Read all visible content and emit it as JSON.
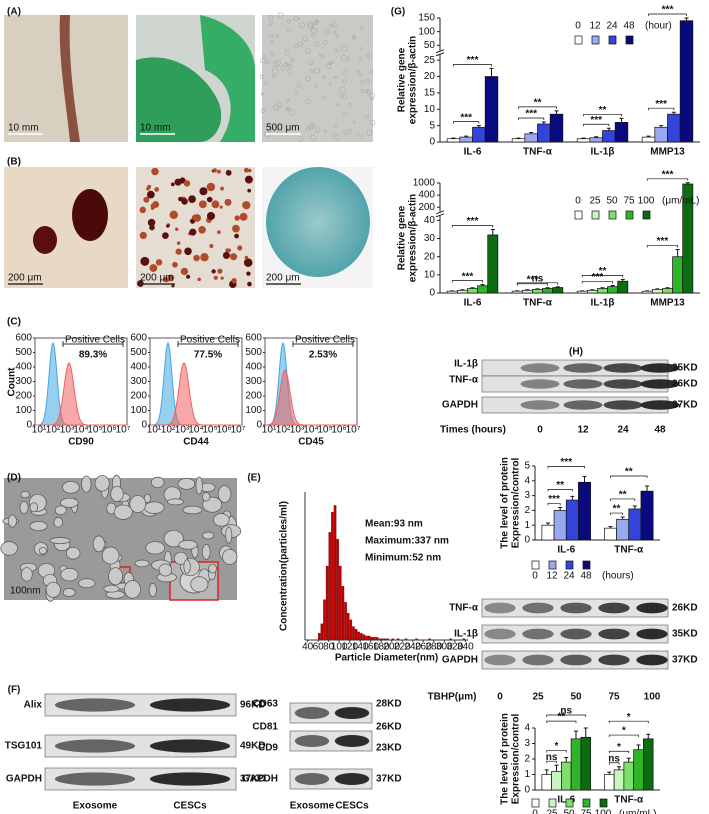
{
  "panel_labels": [
    "(A)",
    "(B)",
    "(C)",
    "(D)",
    "(E)",
    "(F)",
    "(G)",
    "(H)"
  ],
  "photos_a": {
    "scale_labels": [
      "10 mm",
      "10 mm",
      "500 μm"
    ]
  },
  "photos_b": {
    "scale_labels": [
      "200 μm",
      "200 μm",
      "200 μm"
    ]
  },
  "flow": {
    "y_label": "Count",
    "gate_label": "Positive Cells",
    "yticks": [
      0,
      100,
      200,
      300,
      400,
      500,
      600
    ],
    "xticks": [
      "10¹",
      "10²",
      "10³",
      "10⁴",
      "10⁵",
      "10⁶",
      "10⁷"
    ],
    "panels": [
      {
        "marker": "CD90",
        "percent": "89.3%"
      },
      {
        "marker": "CD44",
        "percent": "77.5%"
      },
      {
        "marker": "CD45",
        "percent": "2.53%"
      }
    ]
  },
  "tem": {
    "scale_label": "100nm"
  },
  "blot_f": {
    "left": {
      "proteins": [
        "Alix",
        "TSG101",
        "GAPDH"
      ],
      "sizes": [
        "96KD",
        "49KD",
        "37KD"
      ],
      "lanes": [
        "Exosome",
        "CESCs"
      ]
    },
    "right": {
      "proteins": [
        "CD63",
        "CD81",
        "CD9",
        "GAPDH"
      ],
      "sizes": [
        "28KD",
        "26KD",
        "23KD",
        "37KD"
      ],
      "lanes": [
        "Exosome",
        "CESCs"
      ]
    }
  },
  "blot_h1": {
    "proteins": [
      "IL-1β",
      "TNF-α",
      "GAPDH"
    ],
    "sizes": [
      "35KD",
      "26KD",
      "37KD"
    ],
    "lane_title": "Times (hours)",
    "lanes": [
      "0",
      "12",
      "24",
      "48"
    ]
  },
  "blot_h2": {
    "proteins": [
      "TNF-α",
      "IL-1β",
      "GAPDH"
    ],
    "sizes": [
      "26KD",
      "35KD",
      "37KD"
    ],
    "lane_title": "TBHP(μm)",
    "lanes": [
      "0",
      "25",
      "50",
      "75",
      "100"
    ]
  },
  "chart_data": [
    {
      "type": "histogram",
      "x_label": "Particle Diameter(nm)",
      "y_label": "Concentration(particles/ml)",
      "annotations": [
        "Mean:93 nm",
        "Maximum:337 nm",
        "Minimum:52 nm"
      ],
      "color": "#c00000",
      "bins": [
        60,
        65,
        70,
        75,
        80,
        85,
        90,
        95,
        100,
        105,
        110,
        115,
        120,
        125,
        130,
        135,
        140,
        145,
        150,
        155,
        160,
        165,
        170,
        175,
        180,
        185,
        190,
        195,
        200,
        205,
        210,
        215,
        220,
        225,
        230,
        235,
        240,
        245,
        250,
        255,
        260,
        265,
        270,
        275,
        280,
        285,
        290,
        295,
        300,
        305,
        310,
        315,
        320,
        325,
        330,
        335,
        340
      ],
      "counts": [
        5,
        12,
        30,
        55,
        80,
        95,
        100,
        75,
        55,
        40,
        28,
        20,
        15,
        10,
        8,
        6,
        5,
        4,
        3,
        3,
        2,
        2,
        2,
        1,
        1,
        1,
        1,
        0,
        1,
        0,
        1,
        0,
        0,
        1,
        0,
        0,
        0,
        1,
        0,
        0,
        0,
        0,
        1,
        0,
        0,
        0,
        0,
        0,
        0,
        0,
        1,
        0,
        0,
        0,
        0,
        1
      ],
      "xlim": [
        35,
        345
      ],
      "ylim": [
        0,
        110
      ],
      "xticks": [
        40,
        60,
        80,
        100,
        120,
        140,
        160,
        180,
        200,
        220,
        240,
        260,
        280,
        300,
        320,
        340
      ]
    },
    {
      "type": "bar",
      "y_label": [
        "Relative gene",
        "expression/β-actin"
      ],
      "axis_break": true,
      "categories": [
        "IL-6",
        "TNF-α",
        "IL-1β",
        "MMP13"
      ],
      "yticks": [
        0,
        5,
        10,
        15,
        20,
        25,
        50,
        100,
        150
      ],
      "legend_title": "(hour)",
      "series": [
        {
          "name": "0",
          "color": "#ffffff",
          "values": [
            1,
            1,
            1,
            1.5
          ],
          "errors": [
            0.2,
            0.2,
            0.2,
            0.3
          ]
        },
        {
          "name": "12",
          "color": "#9aa8f0",
          "values": [
            1.5,
            2.5,
            1.3,
            4.5
          ],
          "errors": [
            0.3,
            0.4,
            0.3,
            0.5
          ]
        },
        {
          "name": "24",
          "color": "#3344dd",
          "values": [
            4.5,
            5.5,
            3.5,
            8.5
          ],
          "errors": [
            0.5,
            0.6,
            0.7,
            0.6
          ]
        },
        {
          "name": "48",
          "color": "#0a0a80",
          "values": [
            20,
            8.5,
            6,
            140
          ],
          "errors": [
            2.5,
            1,
            1.2,
            10
          ]
        }
      ],
      "annotations": [
        [
          "***",
          "***"
        ],
        [
          "***",
          "**"
        ],
        [
          "***",
          "**"
        ],
        [
          "***",
          "***"
        ]
      ]
    },
    {
      "type": "bar",
      "y_label": [
        "Relative gene",
        "expression/β-actin"
      ],
      "axis_break": true,
      "categories": [
        "IL-6",
        "TNF-α",
        "IL-1β",
        "MMP13"
      ],
      "yticks": [
        0,
        10,
        20,
        30,
        40,
        200,
        400,
        1000
      ],
      "legend_title": "(μm/mL)",
      "series": [
        {
          "name": "0",
          "color": "#ffffff",
          "values": [
            1,
            1,
            1,
            1
          ],
          "errors": [
            0.2,
            0.2,
            0.2,
            0.2
          ]
        },
        {
          "name": "25",
          "color": "#c8f5c0",
          "values": [
            1.5,
            1.5,
            1.5,
            2
          ],
          "errors": [
            0.3,
            0.3,
            0.3,
            0.3
          ]
        },
        {
          "name": "50",
          "color": "#7ee06a",
          "values": [
            2.5,
            2,
            2.5,
            2.5
          ],
          "errors": [
            0.4,
            0.3,
            0.4,
            0.4
          ]
        },
        {
          "name": "75",
          "color": "#2fb52a",
          "values": [
            4,
            2.5,
            3.5,
            20
          ],
          "errors": [
            0.6,
            0.4,
            0.6,
            4
          ]
        },
        {
          "name": "100",
          "color": "#0d6b12",
          "values": [
            32,
            3,
            6.5,
            950
          ],
          "errors": [
            3,
            0.4,
            1,
            60
          ]
        }
      ],
      "annotations": [
        [
          "***",
          "***"
        ],
        [
          "***",
          "ns"
        ],
        [
          "***",
          "**"
        ],
        [
          "***",
          "***"
        ]
      ]
    },
    {
      "type": "bar",
      "y_label": [
        "The level of protein",
        "Expression/control"
      ],
      "categories": [
        "IL-6",
        "TNF-α"
      ],
      "ylim": [
        0,
        5
      ],
      "yticks": [
        0,
        1,
        2,
        3,
        4,
        5
      ],
      "legend_title": "(hours)",
      "series": [
        {
          "name": "0",
          "color": "#ffffff",
          "values": [
            1,
            0.8
          ],
          "errors": [
            0.15,
            0.1
          ]
        },
        {
          "name": "12",
          "color": "#9aa8f0",
          "values": [
            2,
            1.4
          ],
          "errors": [
            0.2,
            0.15
          ]
        },
        {
          "name": "24",
          "color": "#3344dd",
          "values": [
            2.7,
            2.1
          ],
          "errors": [
            0.25,
            0.2
          ]
        },
        {
          "name": "48",
          "color": "#0a0a80",
          "values": [
            3.9,
            3.3
          ],
          "errors": [
            0.4,
            0.35
          ]
        }
      ],
      "annotations": [
        [
          "***",
          "**",
          "***"
        ],
        [
          "**",
          "**",
          "**"
        ]
      ]
    },
    {
      "type": "bar",
      "y_label": [
        "The level of protein",
        "Expression/control"
      ],
      "categories": [
        "IL-6",
        "TNF-α"
      ],
      "ylim": [
        0,
        4
      ],
      "yticks": [
        0,
        1,
        2,
        3,
        4
      ],
      "legend_title": "(μm/mL)",
      "series": [
        {
          "name": "0",
          "color": "#ffffff",
          "values": [
            1,
            1
          ],
          "errors": [
            0.3,
            0.15
          ]
        },
        {
          "name": "25",
          "color": "#c8f5c0",
          "values": [
            1.2,
            1.3
          ],
          "errors": [
            0.4,
            0.2
          ]
        },
        {
          "name": "50",
          "color": "#7ee06a",
          "values": [
            1.8,
            1.8
          ],
          "errors": [
            0.3,
            0.25
          ]
        },
        {
          "name": "75",
          "color": "#2fb52a",
          "values": [
            3.3,
            2.6
          ],
          "errors": [
            0.5,
            0.3
          ]
        },
        {
          "name": "100",
          "color": "#0d6b12",
          "values": [
            3.4,
            3.3
          ],
          "errors": [
            0.6,
            0.3
          ]
        }
      ],
      "annotations": [
        [
          "ns",
          "*",
          "**",
          "ns"
        ],
        [
          "ns",
          "*",
          "*",
          "*"
        ]
      ]
    }
  ]
}
